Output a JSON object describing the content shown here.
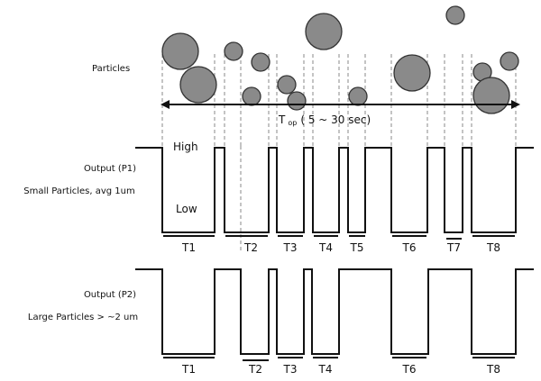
{
  "labels": {
    "particles": "Particles",
    "top_main": "T",
    "top_sub": "op",
    "top_range": "( 5 ~ 30 sec)",
    "high": "High",
    "low": "Low",
    "p1_title": "Output (P1)",
    "p1_desc": "Small Particles, avg 1um",
    "p2_title": "Output (P2)",
    "p2_desc": "Large Particles > ~2 um"
  },
  "p1_periods": [
    "T1",
    "T2",
    "T3",
    "T4",
    "T5",
    "T6",
    "T7",
    "T8"
  ],
  "p2_periods": [
    "T1",
    "T2",
    "T3",
    "T4",
    "T6",
    "T8"
  ],
  "colors": {
    "particle": "#8a8a8a",
    "line": "#111111"
  }
}
